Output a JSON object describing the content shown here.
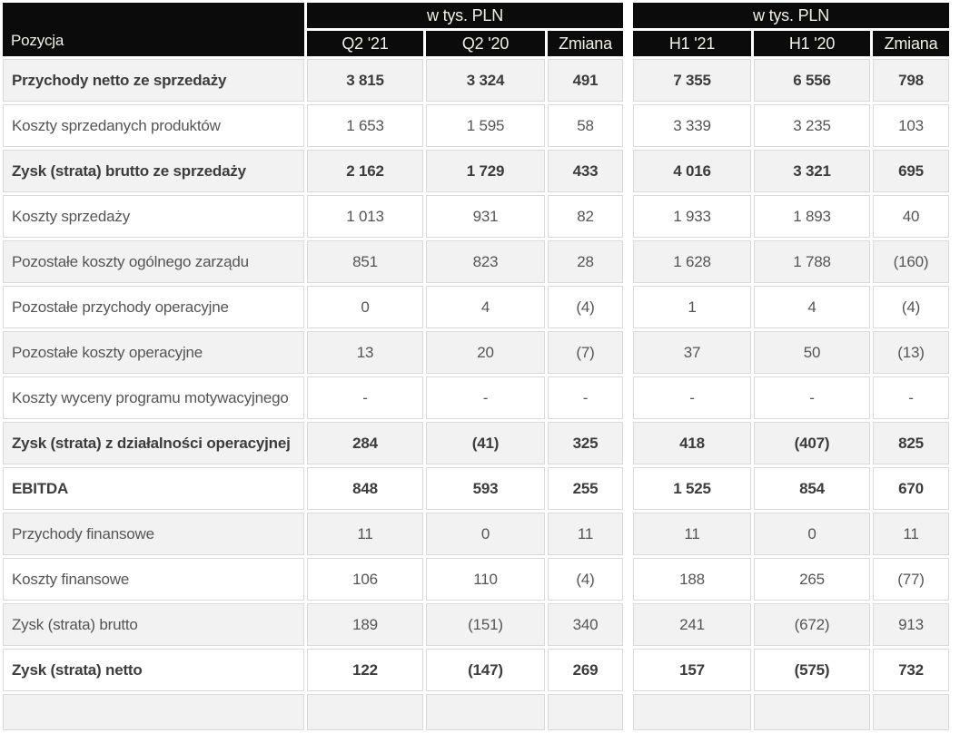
{
  "table": {
    "position_header": "Pozycja",
    "unit_header": "w tys. PLN",
    "q2_columns": [
      "Q2 '21",
      "Q2 '20",
      "Zmiana"
    ],
    "h1_columns": [
      "H1 '21",
      "H1 '20",
      "Zmiana"
    ],
    "rows": [
      {
        "label": "Przychody netto ze sprzedaży",
        "bold": true,
        "values": [
          "3 815",
          "3 324",
          "491",
          "7 355",
          "6 556",
          "798"
        ]
      },
      {
        "label": "Koszty sprzedanych produktów",
        "bold": false,
        "values": [
          "1 653",
          "1 595",
          "58",
          "3 339",
          "3 235",
          "103"
        ]
      },
      {
        "label": "Zysk (strata) brutto ze sprzedaży",
        "bold": true,
        "values": [
          "2 162",
          "1 729",
          "433",
          "4 016",
          "3 321",
          "695"
        ]
      },
      {
        "label": "Koszty sprzedaży",
        "bold": false,
        "values": [
          "1 013",
          "931",
          "82",
          "1 933",
          "1 893",
          "40"
        ]
      },
      {
        "label": "Pozostałe koszty ogólnego zarządu",
        "bold": false,
        "values": [
          "851",
          "823",
          "28",
          "1 628",
          "1 788",
          "(160)"
        ]
      },
      {
        "label": "Pozostałe przychody operacyjne",
        "bold": false,
        "values": [
          "0",
          "4",
          "(4)",
          "1",
          "4",
          "(4)"
        ]
      },
      {
        "label": "Pozostałe koszty operacyjne",
        "bold": false,
        "values": [
          "13",
          "20",
          "(7)",
          "37",
          "50",
          "(13)"
        ]
      },
      {
        "label": "Koszty wyceny programu motywacyjnego",
        "bold": false,
        "values": [
          "-",
          "-",
          "-",
          "-",
          "-",
          "-"
        ]
      },
      {
        "label": "Zysk (strata) z działalności operacyjnej",
        "bold": true,
        "values": [
          "284",
          "(41)",
          "325",
          "418",
          "(407)",
          "825"
        ]
      },
      {
        "label": "EBITDA",
        "bold": true,
        "values": [
          "848",
          "593",
          "255",
          "1 525",
          "854",
          "670"
        ]
      },
      {
        "label": "Przychody finansowe",
        "bold": false,
        "values": [
          "11",
          "0",
          "11",
          "11",
          "0",
          "11"
        ]
      },
      {
        "label": "Koszty finansowe",
        "bold": false,
        "values": [
          "106",
          "110",
          "(4)",
          "188",
          "265",
          "(77)"
        ]
      },
      {
        "label": "Zysk (strata) brutto",
        "bold": false,
        "values": [
          "189",
          "(151)",
          "340",
          "241",
          "(672)",
          "913"
        ]
      },
      {
        "label": "Zysk (strata) netto",
        "bold": true,
        "values": [
          "122",
          "(147)",
          "269",
          "157",
          "(575)",
          "732"
        ]
      }
    ]
  },
  "colors": {
    "header_bg": "#0b0b0b",
    "header_text": "#f3efe4",
    "row_shaded_bg": "#f2f2f2",
    "row_plain_bg": "#ffffff",
    "cell_border": "#d9d9d9",
    "text": "#555555",
    "bold_text": "#3c3c3c"
  }
}
